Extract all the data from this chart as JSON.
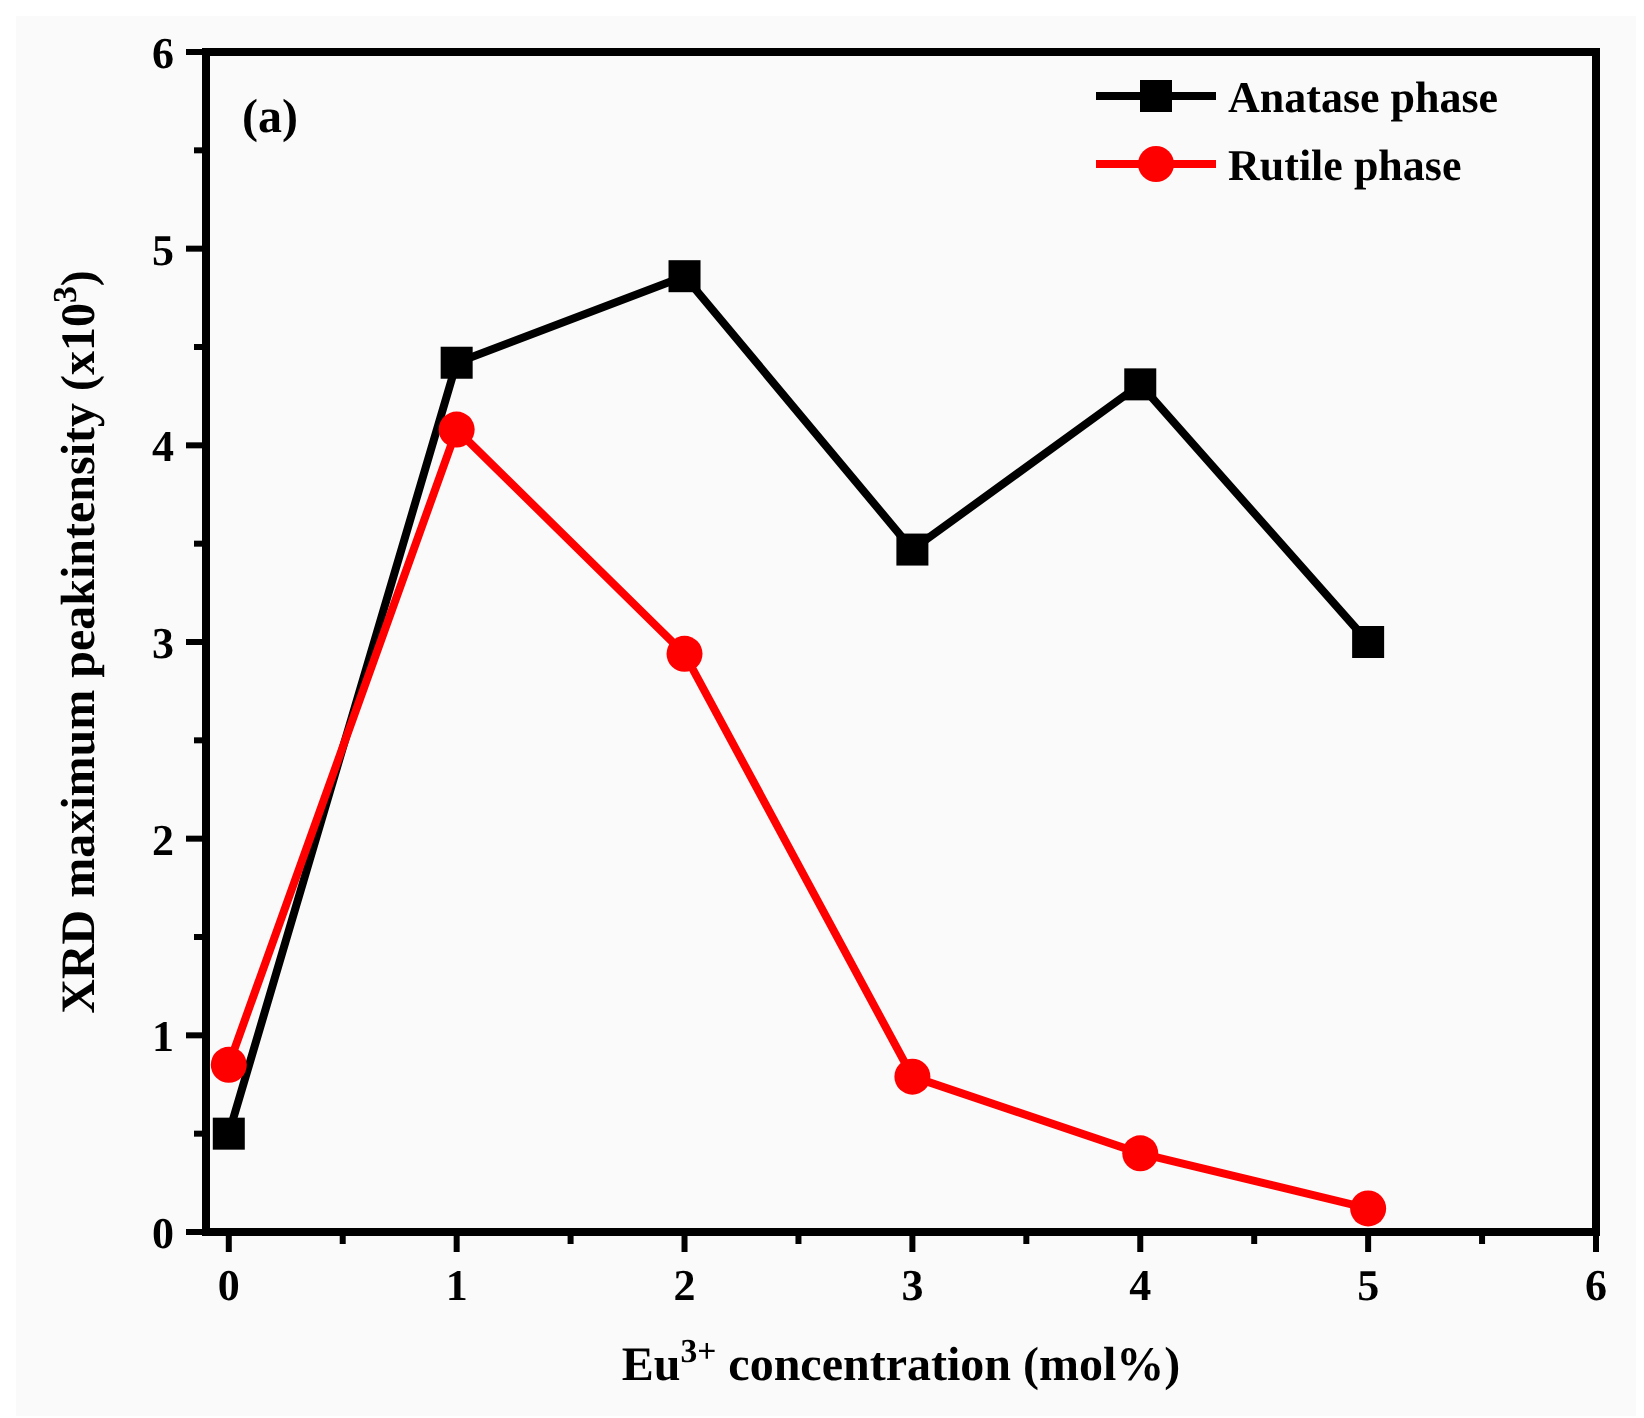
{
  "chart_data": {
    "type": "line",
    "xlabel": "Eu$^{3+}$ concentration (mol%)",
    "ylabel": "XRD maximum peakintensity (x10$^{3}$)",
    "annotations": [
      "(a)"
    ],
    "x": [
      0,
      1,
      2,
      3,
      4,
      5
    ],
    "series": [
      {
        "name": "Anatase phase",
        "color": "#000000",
        "marker": "square",
        "values": [
          0.5,
          4.42,
          4.86,
          3.47,
          4.31,
          3.0
        ]
      },
      {
        "name": "Rutile phase",
        "color": "#ff0000",
        "marker": "circle",
        "values": [
          0.85,
          4.08,
          2.94,
          0.79,
          0.4,
          0.12
        ]
      }
    ],
    "xlim": [
      -0.1,
      6
    ],
    "ylim": [
      0,
      6
    ],
    "xticks": [
      0,
      {
        "value": 0.5,
        "label": null
      },
      1,
      {
        "value": 1.5,
        "label": null
      },
      2,
      {
        "value": 2.5,
        "label": null
      },
      3,
      {
        "value": 3.5,
        "label": null
      },
      4,
      {
        "value": 4.5,
        "label": null
      },
      5,
      {
        "value": 5.5,
        "label": null
      },
      6
    ],
    "yticks": [
      0,
      {
        "value": 0.5,
        "label": null
      },
      1,
      {
        "value": 1.5,
        "label": null
      },
      2,
      {
        "value": 2.5,
        "label": null
      },
      3,
      {
        "value": 3.5,
        "label": null
      },
      4,
      {
        "value": 4.5,
        "label": null
      },
      5,
      {
        "value": 5.5,
        "label": null
      },
      6
    ],
    "legend": "top right",
    "grid": false,
    "line_style": "solid"
  }
}
